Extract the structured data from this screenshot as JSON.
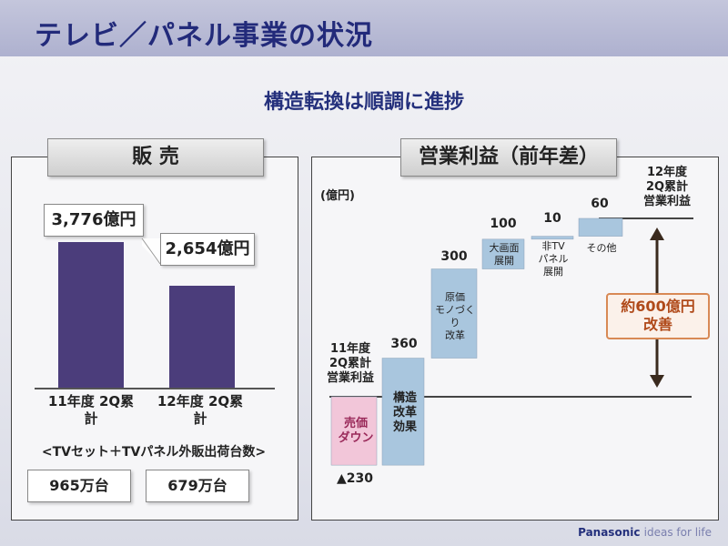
{
  "title": "テレビ／パネル事業の状況",
  "subtitle": "構造転換は順調に進捗",
  "sales_panel": {
    "label": "販 売",
    "note": "<TVセット＋TVパネル外販出荷台数>"
  },
  "profit_panel": {
    "label": "営業利益（前年差）"
  },
  "chart_data": [
    {
      "type": "bar",
      "categories": [
        "11年度 2Q累計",
        "12年度 2Q累計"
      ],
      "values": [
        3776,
        2654
      ],
      "data_labels": [
        "3,776億円",
        "2,654億円"
      ],
      "units_shipped": [
        "965万台",
        "679万台"
      ]
    },
    {
      "type": "bar",
      "ylabel": "(億円)",
      "start_label": [
        "11年度",
        "2Q累計",
        "営業利益"
      ],
      "end_label": [
        "12年度",
        "2Q累計",
        "営業利益"
      ],
      "steps": [
        {
          "label": "売価ダウン",
          "value": -230,
          "display": "▲230",
          "color": "#f2c6d9"
        },
        {
          "label": "構造改革効果",
          "value": 360,
          "display": "360",
          "color": "#a9c6de"
        },
        {
          "label": "原価モノづくり改革",
          "value": 300,
          "display": "300",
          "color": "#a9c6de"
        },
        {
          "label": "大画面展開",
          "value": 100,
          "display": "100",
          "color": "#a9c6de"
        },
        {
          "label": "非TVパネル展開",
          "value": 10,
          "display": "10",
          "color": "#a9c6de"
        },
        {
          "label": "その他",
          "value": 60,
          "display": "60",
          "color": "#a9c6de"
        }
      ],
      "improvement": "約600億円改善"
    }
  ],
  "step_text": {
    "s0": [
      "売価",
      "ダウン"
    ],
    "s1": [
      "構造",
      "改革",
      "効果"
    ],
    "s2": [
      "原価",
      "モノづくり",
      "改革"
    ],
    "s3": [
      "大画面",
      "展開"
    ],
    "s4": [
      "非TV",
      "パネル",
      "展開"
    ],
    "s5": [
      "その他"
    ]
  },
  "improvement_lines": [
    "約600億円",
    "改善"
  ],
  "footer": {
    "brand": "Panasonic",
    "tagline": "ideas for life"
  }
}
